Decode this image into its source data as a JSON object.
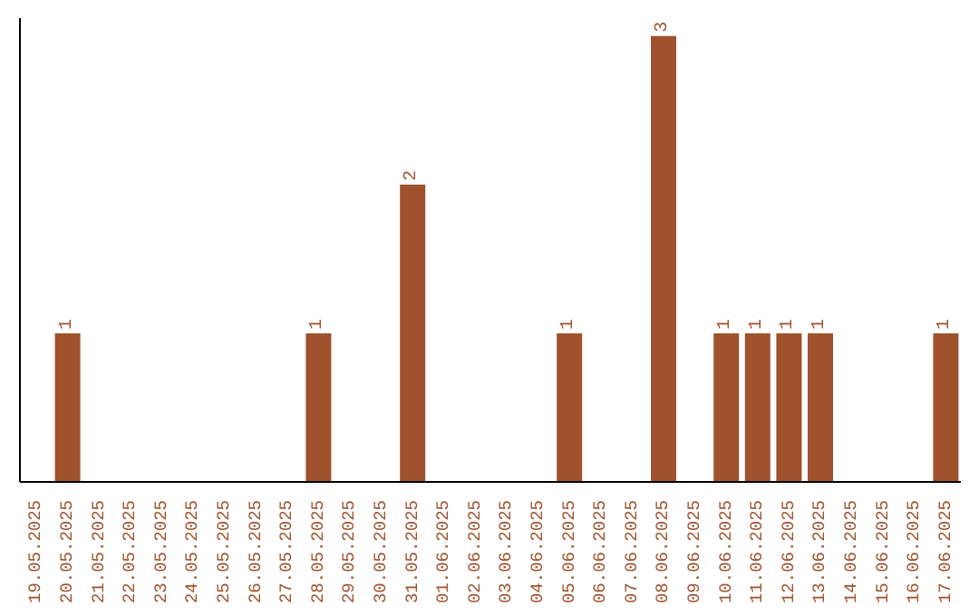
{
  "chart_data": {
    "type": "bar",
    "relative": false,
    "categories": [
      "19.05.2025",
      "20.05.2025",
      "21.05.2025",
      "22.05.2025",
      "23.05.2025",
      "24.05.2025",
      "25.05.2025",
      "26.05.2025",
      "27.05.2025",
      "28.05.2025",
      "29.05.2025",
      "30.05.2025",
      "31.05.2025",
      "01.06.2025",
      "02.06.2025",
      "03.06.2025",
      "04.06.2025",
      "05.06.2025",
      "06.06.2025",
      "07.06.2025",
      "08.06.2025",
      "09.06.2025",
      "10.06.2025",
      "11.06.2025",
      "12.06.2025",
      "13.06.2025",
      "14.06.2025",
      "15.06.2025",
      "16.06.2025",
      "17.06.2025"
    ],
    "values": [
      0,
      1,
      0,
      0,
      0,
      0,
      0,
      0,
      0,
      1,
      0,
      0,
      2,
      0,
      0,
      0,
      0,
      1,
      0,
      0,
      3,
      0,
      1,
      1,
      1,
      1,
      0,
      0,
      0,
      1
    ],
    "value_labels": [
      null,
      "1",
      null,
      null,
      null,
      null,
      null,
      null,
      null,
      "1",
      null,
      null,
      "2",
      null,
      null,
      null,
      null,
      "1",
      null,
      null,
      "3",
      null,
      "1",
      "1",
      "1",
      "1",
      null,
      null,
      null,
      "1"
    ],
    "color": "#a0522d"
  }
}
